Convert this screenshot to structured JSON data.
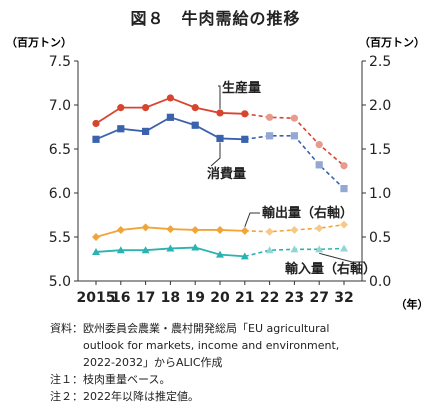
{
  "figure_title": "図８　牛肉需給の推移",
  "notes": [
    "資料：欧州委員会農業・農村開発総局「EU agricultural",
    "　　　outlook for markets, income and environment,",
    "　　　2022-2032」からALIC作成",
    "注１：枝肉重量ベース。",
    "注２：2022年以降は推定値。"
  ],
  "colors": {
    "production": "#d8452f",
    "production_est": "#e89b8c",
    "consumption": "#3b63ad",
    "consumption_est": "#93a8d2",
    "export": "#f2a437",
    "export_est": "#f6c98a",
    "import": "#2ab3b0",
    "import_est": "#92d6d4",
    "axis": "#333333",
    "grid": "#d9d9d9"
  },
  "chart_data": {
    "type": "line",
    "categories": [
      "2015",
      "16",
      "17",
      "18",
      "19",
      "20",
      "21",
      "22",
      "23",
      "27",
      "32"
    ],
    "x_unit": "（年）",
    "estimate_start_index": 6,
    "y_left": {
      "unit": "（百万トン）",
      "range": [
        5.0,
        7.5
      ],
      "ticks": [
        "5.0",
        "5.5",
        "6.0",
        "6.5",
        "7.0",
        "7.5"
      ]
    },
    "y_right": {
      "unit": "（百万トン）",
      "range": [
        0,
        2.5
      ],
      "ticks": [
        "0.0",
        "0.5",
        "1.0",
        "1.5",
        "2.0",
        "2.5"
      ]
    },
    "grid": false,
    "series": [
      {
        "name": "生産量",
        "axis": "left",
        "marker": "circle",
        "color_key": "production",
        "values": [
          6.79,
          6.97,
          6.97,
          7.08,
          6.97,
          6.91,
          6.9,
          6.86,
          6.85,
          6.55,
          6.31
        ]
      },
      {
        "name": "消費量",
        "axis": "left",
        "marker": "square",
        "color_key": "consumption",
        "values": [
          6.61,
          6.73,
          6.7,
          6.86,
          6.77,
          6.62,
          6.61,
          6.65,
          6.65,
          6.32,
          6.05
        ]
      },
      {
        "name": "輸出量（右軸）",
        "axis": "right",
        "marker": "diamond",
        "color_key": "export",
        "values": [
          0.5,
          0.58,
          0.61,
          0.59,
          0.58,
          0.58,
          0.57,
          0.56,
          0.58,
          0.6,
          0.64
        ]
      },
      {
        "name": "輸入量（右軸）",
        "axis": "right",
        "marker": "triangle",
        "color_key": "import",
        "values": [
          0.33,
          0.35,
          0.35,
          0.37,
          0.38,
          0.3,
          0.28,
          0.35,
          0.36,
          0.36,
          0.37
        ]
      }
    ]
  }
}
